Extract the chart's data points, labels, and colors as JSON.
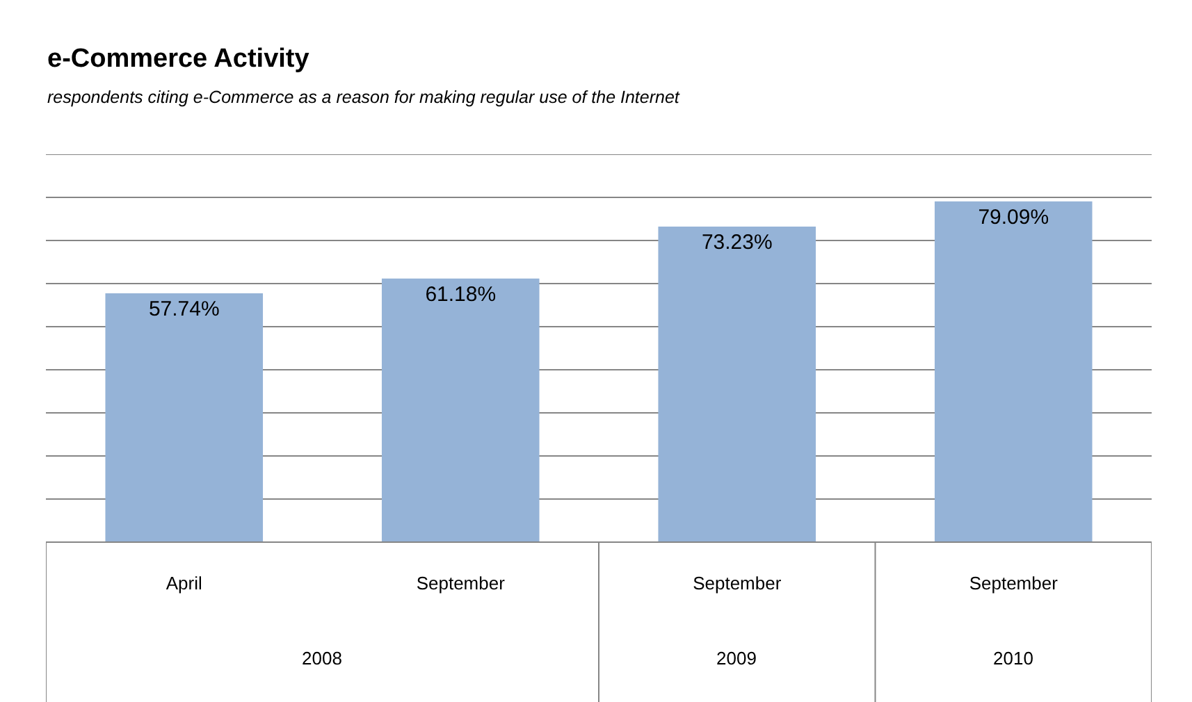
{
  "chart_data": {
    "type": "bar",
    "title": "e-Commerce Activity",
    "subtitle": "respondents citing e-Commerce as a reason for making regular use of the Internet",
    "categories": [
      "April",
      "September",
      "September",
      "September"
    ],
    "values": [
      57.74,
      61.18,
      73.23,
      79.09
    ],
    "value_labels": [
      "57.74%",
      "61.18%",
      "73.23%",
      "79.09%"
    ],
    "color": "#95b3d7",
    "ylim": [
      0,
      90
    ],
    "yticks": [
      {
        "value": 0,
        "label": null
      },
      {
        "value": 10,
        "label": null
      },
      {
        "value": 20,
        "label": null
      },
      {
        "value": 30,
        "label": null
      },
      {
        "value": 40,
        "label": null
      },
      {
        "value": 50,
        "label": null
      },
      {
        "value": 60,
        "label": null
      },
      {
        "value": 70,
        "label": null
      },
      {
        "value": 80,
        "label": null
      },
      {
        "value": 90,
        "label": null
      }
    ],
    "grid": "y",
    "tick_labels": "x",
    "legend": false,
    "annotations": [
      "2008",
      "2009",
      "2010"
    ]
  }
}
